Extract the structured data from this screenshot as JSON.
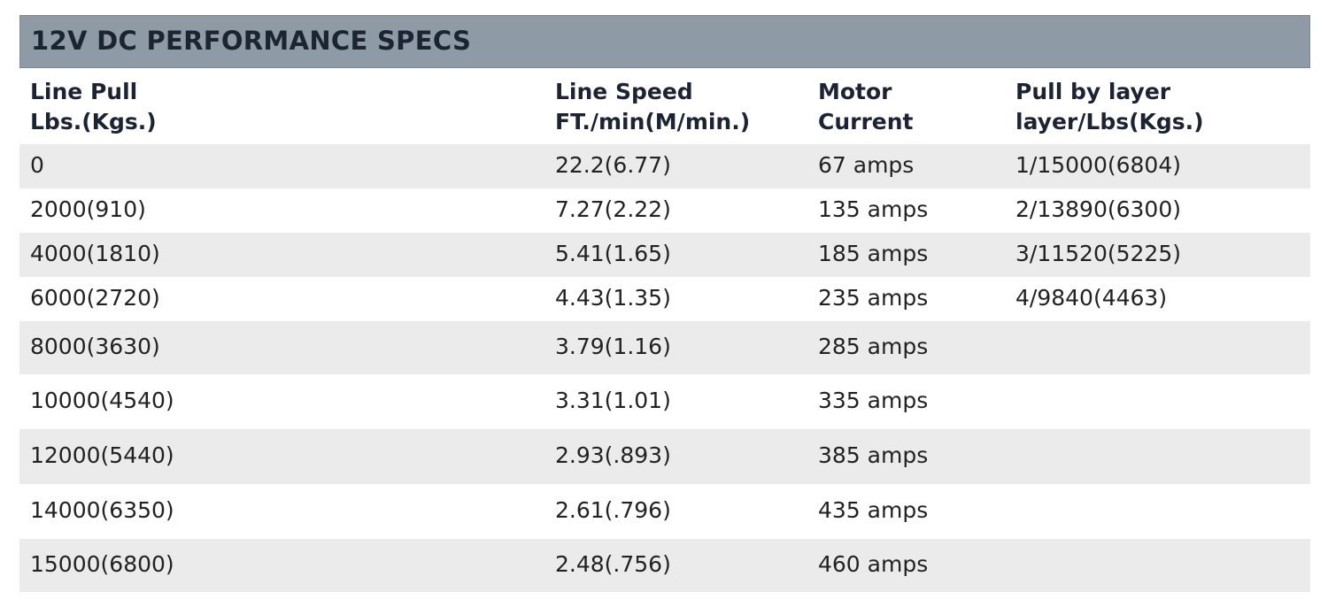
{
  "header": {
    "title": "12V DC PERFORMANCE SPECS"
  },
  "table": {
    "columns": [
      [
        "Line Pull",
        "Lbs.(Kgs.)"
      ],
      [
        "Line Speed",
        "FT./min(M/min.)"
      ],
      [
        "Motor",
        "Current"
      ],
      [
        "Pull by layer",
        "layer/Lbs(Kgs.)"
      ]
    ],
    "rows": [
      [
        "0",
        "22.2(6.77)",
        "67 amps",
        "1/15000(6804)"
      ],
      [
        "2000(910)",
        "7.27(2.22)",
        "135 amps",
        "2/13890(6300)"
      ],
      [
        "4000(1810)",
        "5.41(1.65)",
        "185 amps",
        "3/11520(5225)"
      ],
      [
        "6000(2720)",
        "4.43(1.35)",
        "235 amps",
        "4/9840(4463)"
      ],
      [
        "8000(3630)",
        "3.79(1.16)",
        "285 amps"
      ],
      [
        "10000(4540)",
        "3.31(1.01)",
        "335 amps"
      ],
      [
        "12000(5440)",
        "2.93(.893)",
        "385 amps"
      ],
      [
        "14000(6350)",
        "2.61(.796)",
        "435 amps"
      ],
      [
        "15000(6800)",
        "2.48(.756)",
        "460 amps"
      ]
    ]
  }
}
